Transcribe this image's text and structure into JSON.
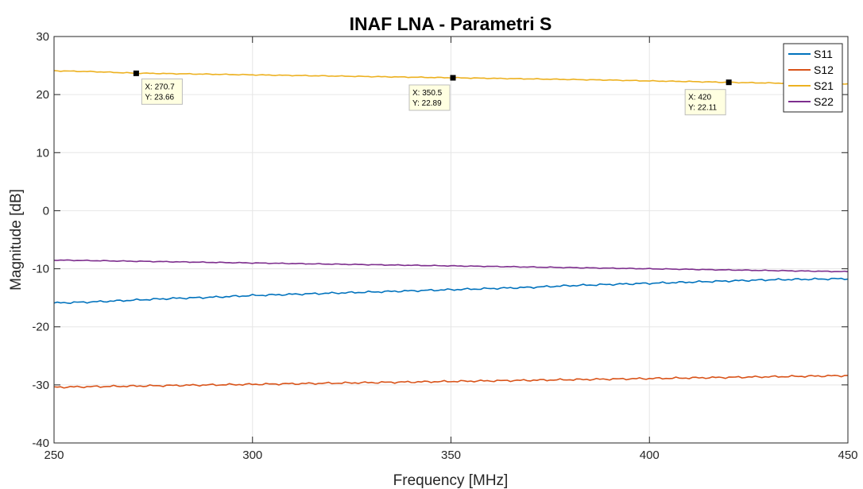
{
  "chart_data": {
    "type": "line",
    "title": "INAF LNA - Parametri S",
    "xlabel": "Frequency [MHz]",
    "ylabel": "Magnitude [dB]",
    "xlim": [
      250,
      450
    ],
    "ylim": [
      -40,
      30
    ],
    "xticks": [
      "250",
      "300",
      "350",
      "400",
      "450"
    ],
    "yticks": [
      "-40",
      "-30",
      "-20",
      "-10",
      "0",
      "10",
      "20",
      "30"
    ],
    "grid": true,
    "legend_position": "top-right",
    "series": [
      {
        "name": "S11",
        "color": "#0072BD",
        "x": [
          250,
          260,
          270,
          280,
          290,
          300,
          310,
          320,
          330,
          340,
          350,
          360,
          370,
          380,
          390,
          400,
          410,
          420,
          430,
          440,
          450
        ],
        "values": [
          -15.9,
          -15.7,
          -15.4,
          -15.1,
          -14.9,
          -14.6,
          -14.4,
          -14.2,
          -14.0,
          -13.8,
          -13.6,
          -13.4,
          -13.2,
          -12.9,
          -12.7,
          -12.5,
          -12.3,
          -12.1,
          -11.9,
          -11.8,
          -11.7
        ]
      },
      {
        "name": "S12",
        "color": "#D95319",
        "x": [
          250,
          260,
          270,
          280,
          290,
          300,
          310,
          320,
          330,
          340,
          350,
          360,
          370,
          380,
          390,
          400,
          410,
          420,
          430,
          440,
          450
        ],
        "values": [
          -30.4,
          -30.3,
          -30.2,
          -30.1,
          -30.0,
          -29.9,
          -29.8,
          -29.7,
          -29.6,
          -29.5,
          -29.4,
          -29.3,
          -29.2,
          -29.1,
          -29.0,
          -28.9,
          -28.8,
          -28.7,
          -28.6,
          -28.5,
          -28.4
        ]
      },
      {
        "name": "S21",
        "color": "#EDB120",
        "x": [
          250,
          260,
          270,
          280,
          290,
          300,
          310,
          320,
          330,
          340,
          350,
          360,
          370,
          380,
          390,
          400,
          410,
          420,
          430,
          440,
          450
        ],
        "values": [
          24.1,
          23.95,
          23.7,
          23.6,
          23.5,
          23.4,
          23.3,
          23.2,
          23.1,
          23.0,
          22.9,
          22.8,
          22.7,
          22.6,
          22.5,
          22.35,
          22.25,
          22.1,
          22.0,
          21.9,
          21.8
        ]
      },
      {
        "name": "S22",
        "color": "#7E2F8E",
        "x": [
          250,
          260,
          270,
          280,
          290,
          300,
          310,
          320,
          330,
          340,
          350,
          360,
          370,
          380,
          390,
          400,
          410,
          420,
          430,
          440,
          450
        ],
        "values": [
          -8.5,
          -8.6,
          -8.7,
          -8.8,
          -8.9,
          -9.0,
          -9.1,
          -9.2,
          -9.3,
          -9.4,
          -9.5,
          -9.6,
          -9.7,
          -9.8,
          -9.9,
          -10.0,
          -10.1,
          -10.2,
          -10.3,
          -10.4,
          -10.5
        ]
      }
    ],
    "datatips": [
      {
        "x": 270.7,
        "y": 23.66,
        "line1": "X: 270.7",
        "line2": "Y: 23.66"
      },
      {
        "x": 350.5,
        "y": 22.89,
        "line1": "X: 350.5",
        "line2": "Y: 22.89"
      },
      {
        "x": 420,
        "y": 22.11,
        "line1": "X: 420",
        "line2": "Y: 22.11"
      }
    ]
  }
}
